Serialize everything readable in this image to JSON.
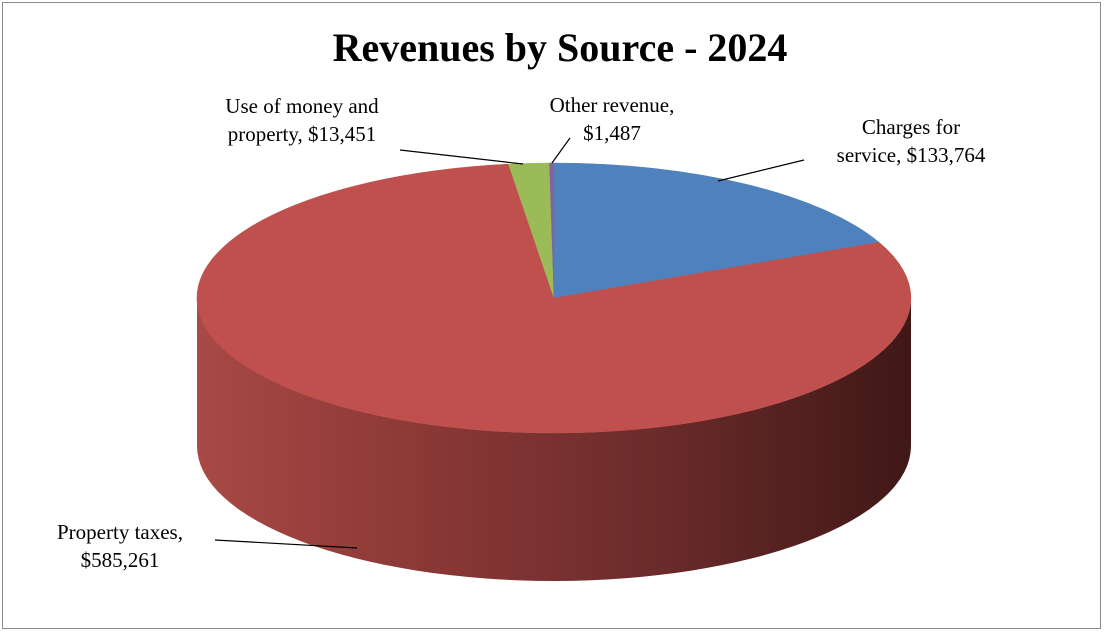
{
  "chart_data": {
    "type": "pie",
    "title": "Revenues by Source - 2024",
    "slices": [
      {
        "name": "Charges for service",
        "value": 133764,
        "value_label": "$133,764",
        "label_lines": [
          "Charges for",
          "service,  $133,764"
        ],
        "color": "#4f81bd"
      },
      {
        "name": "Property taxes",
        "value": 585261,
        "value_label": "$585,261",
        "label_lines": [
          "Property taxes,",
          "$585,261"
        ],
        "color": "#c0504d"
      },
      {
        "name": "Use of money and property",
        "value": 13451,
        "value_label": "$13,451",
        "label_lines": [
          "Use of money and",
          "property,  $13,451"
        ],
        "color": "#9bbb59"
      },
      {
        "name": "Other revenue",
        "value": 1487,
        "value_label": "$1,487",
        "label_lines": [
          "Other revenue,",
          "$1,487"
        ],
        "color": "#8064a2"
      }
    ],
    "style": "3d"
  }
}
